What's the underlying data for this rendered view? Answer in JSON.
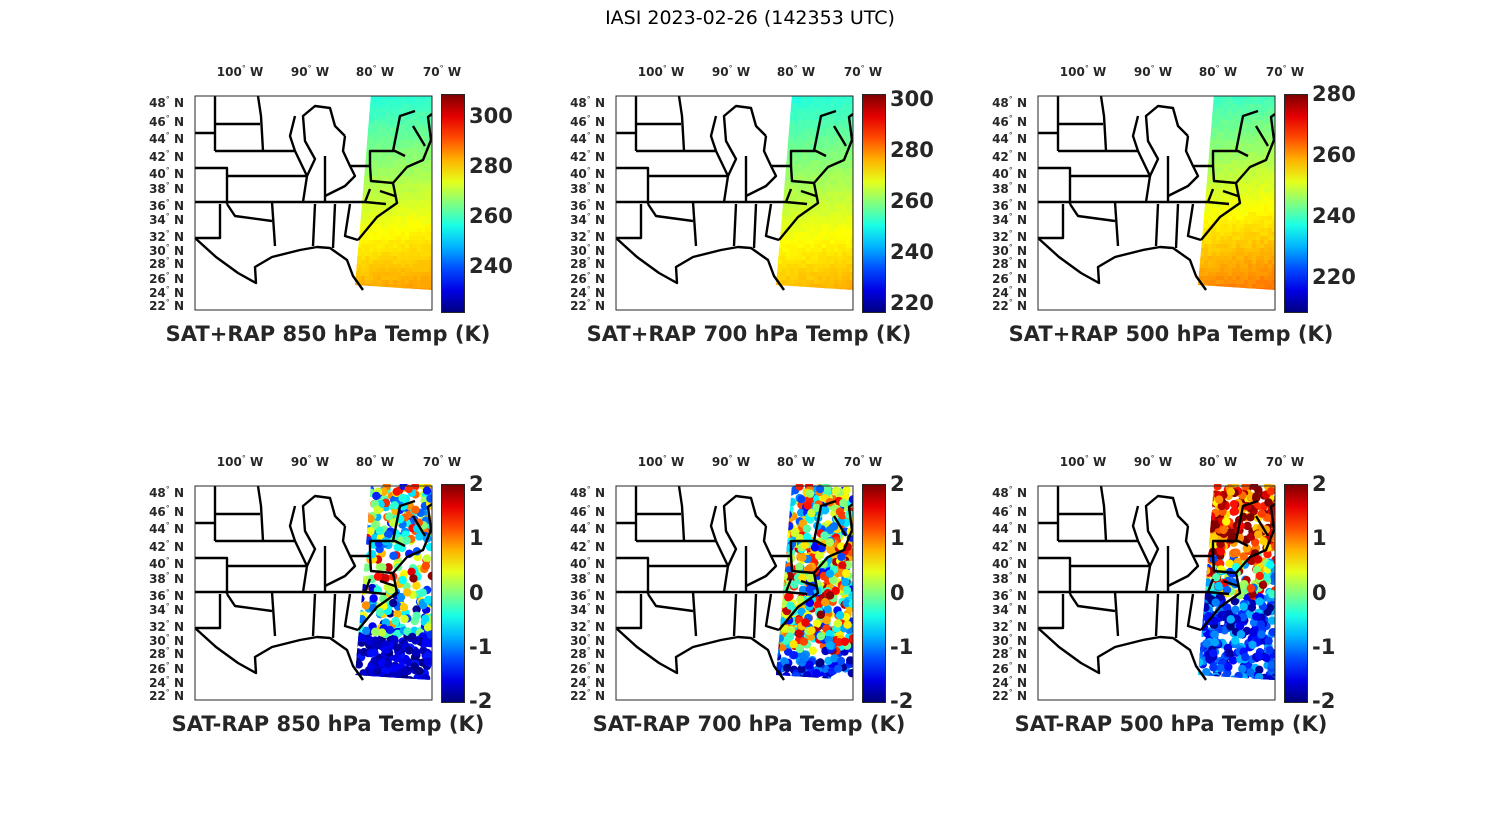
{
  "figure_title": "IASI 2023-02-26 (142353 UTC)",
  "lon_labels": [
    "100",
    "90",
    "80",
    "70"
  ],
  "lon_suffix": "W",
  "lat_labels": [
    "48",
    "46",
    "44",
    "42",
    "40",
    "38",
    "36",
    "34",
    "32",
    "30",
    "28",
    "26",
    "24",
    "22"
  ],
  "lat_suffix": "N",
  "degree_symbol": "°",
  "colormap": "jet",
  "panels": [
    {
      "title": "SAT+RAP 850 hPa Temp (K)",
      "kind": "total",
      "cbar_range": [
        222,
        309
      ],
      "cbar_ticks": [
        "240",
        "260",
        "280",
        "300"
      ],
      "swath_range": [
        258,
        284
      ]
    },
    {
      "title": "SAT+RAP 700 hPa Temp (K)",
      "kind": "total",
      "cbar_range": [
        217,
        302
      ],
      "cbar_ticks": [
        "220",
        "240",
        "260",
        "280",
        "300"
      ],
      "swath_range": [
        252,
        276
      ]
    },
    {
      "title": "SAT+RAP 500 hPa Temp (K)",
      "kind": "total",
      "cbar_range": [
        209,
        280
      ],
      "cbar_ticks": [
        "220",
        "240",
        "260",
        "280"
      ],
      "swath_range": [
        240,
        262
      ]
    },
    {
      "title": "SAT-RAP 850 hPa Temp (K)",
      "kind": "diff",
      "cbar_range": [
        -2,
        2
      ],
      "cbar_ticks": [
        "-2",
        "-1",
        "0",
        "1",
        "2"
      ]
    },
    {
      "title": "SAT-RAP 700 hPa Temp (K)",
      "kind": "diff",
      "cbar_range": [
        -2,
        2
      ],
      "cbar_ticks": [
        "-2",
        "-1",
        "0",
        "1",
        "2"
      ]
    },
    {
      "title": "SAT-RAP 500 hPa Temp (K)",
      "kind": "diff",
      "cbar_range": [
        -2,
        2
      ],
      "cbar_ticks": [
        "-2",
        "-1",
        "0",
        "1",
        "2"
      ]
    }
  ]
}
